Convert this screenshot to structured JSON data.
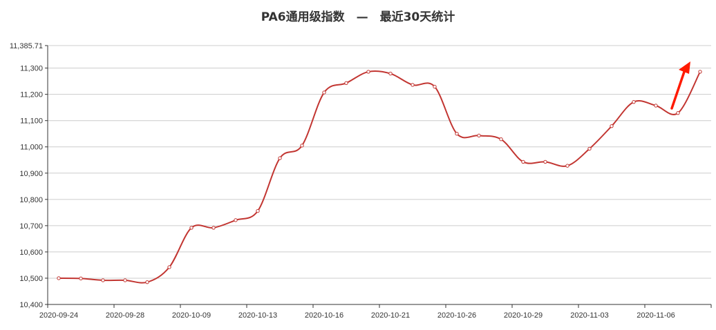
{
  "chart_data": {
    "type": "line",
    "title": "PA6通用级指数　—　最近30天统计",
    "xlabel": "",
    "ylabel": "",
    "ylim": [
      10400,
      11385.71
    ],
    "y_ticks": [
      "10,400",
      "10,500",
      "10,600",
      "10,700",
      "10,800",
      "10,900",
      "11,000",
      "11,100",
      "11,200",
      "11,300",
      "11,385.71"
    ],
    "y_tick_values": [
      10400,
      10500,
      10600,
      10700,
      10800,
      10900,
      11000,
      11100,
      11200,
      11300,
      11385.71
    ],
    "x_tick_labels": [
      "2020-09-24",
      "2020-09-28",
      "2020-10-09",
      "2020-10-13",
      "2020-10-16",
      "2020-10-21",
      "2020-10-26",
      "2020-10-29",
      "2020-11-03",
      "2020-11-06"
    ],
    "grid": true,
    "smooth": true,
    "colors": {
      "line": "#c23531",
      "arrow": "#ff1a00",
      "grid": "#cccccc",
      "axis": "#333333"
    },
    "series": [
      {
        "values": [
          10500,
          10499,
          10492,
          10492,
          10485,
          10542,
          10692,
          10692,
          10721,
          10756,
          10957,
          11005,
          11207,
          11243,
          11286,
          11279,
          11236,
          11229,
          11050,
          11043,
          11029,
          10943,
          10943,
          10928,
          10993,
          11079,
          11171,
          11157,
          11129,
          11286
        ]
      }
    ],
    "annotations": [
      {
        "type": "arrow",
        "direction": "up-right"
      }
    ]
  }
}
